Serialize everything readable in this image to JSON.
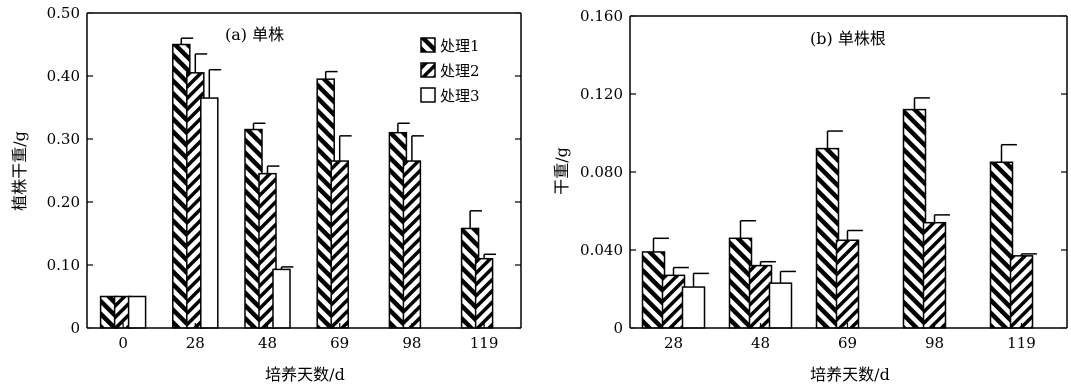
{
  "chart_data": [
    {
      "type": "bar",
      "title": "(a)  单株",
      "xlabel": "培养天数/d",
      "ylabel": "植株干重/g",
      "categories": [
        "0",
        "28",
        "48",
        "69",
        "98",
        "119"
      ],
      "ylim": [
        0,
        0.5
      ],
      "yticks": [
        "0",
        "0.10",
        "0.20",
        "0.30",
        "0.40",
        "0.50"
      ],
      "yticks_values": [
        0,
        0.1,
        0.2,
        0.3,
        0.4,
        0.5
      ],
      "legend_position": "top-right",
      "series": [
        {
          "name": "处理1",
          "pattern": "diag-back-wide",
          "values": [
            0.05,
            0.45,
            0.315,
            0.395,
            0.31,
            0.158
          ],
          "errors": [
            0,
            0.01,
            0.01,
            0.012,
            0.015,
            0.028
          ]
        },
        {
          "name": "处理2",
          "pattern": "diag-fwd-narrow",
          "values": [
            0.05,
            0.405,
            0.245,
            0.265,
            0.265,
            0.11
          ],
          "errors": [
            0,
            0.03,
            0.012,
            0.04,
            0.04,
            0.007
          ]
        },
        {
          "name": "处理3",
          "pattern": "empty",
          "values": [
            0.05,
            0.365,
            0.093,
            null,
            null,
            null
          ],
          "errors": [
            0,
            0.045,
            0.004,
            0,
            0,
            0
          ]
        }
      ]
    },
    {
      "type": "bar",
      "title": "(b)  单株根",
      "xlabel": "培养天数/d",
      "ylabel": "干重/g",
      "categories": [
        "28",
        "48",
        "69",
        "98",
        "119"
      ],
      "ylim": [
        0,
        0.16
      ],
      "yticks": [
        "0",
        "0.040",
        "0.080",
        "0.120",
        "0.160"
      ],
      "yticks_values": [
        0,
        0.04,
        0.08,
        0.12,
        0.16
      ],
      "series": [
        {
          "name": "处理1",
          "pattern": "diag-back-wide",
          "values": [
            0.039,
            0.046,
            0.092,
            0.112,
            0.085
          ],
          "errors": [
            0.007,
            0.009,
            0.009,
            0.006,
            0.009
          ]
        },
        {
          "name": "处理2",
          "pattern": "diag-fwd-narrow",
          "values": [
            0.027,
            0.032,
            0.045,
            0.054,
            0.037
          ],
          "errors": [
            0.004,
            0.002,
            0.005,
            0.004,
            0.001
          ]
        },
        {
          "name": "处理3",
          "pattern": "empty",
          "values": [
            0.021,
            0.023,
            null,
            null,
            null
          ],
          "errors": [
            0.007,
            0.006,
            0,
            0,
            0
          ]
        }
      ]
    }
  ]
}
